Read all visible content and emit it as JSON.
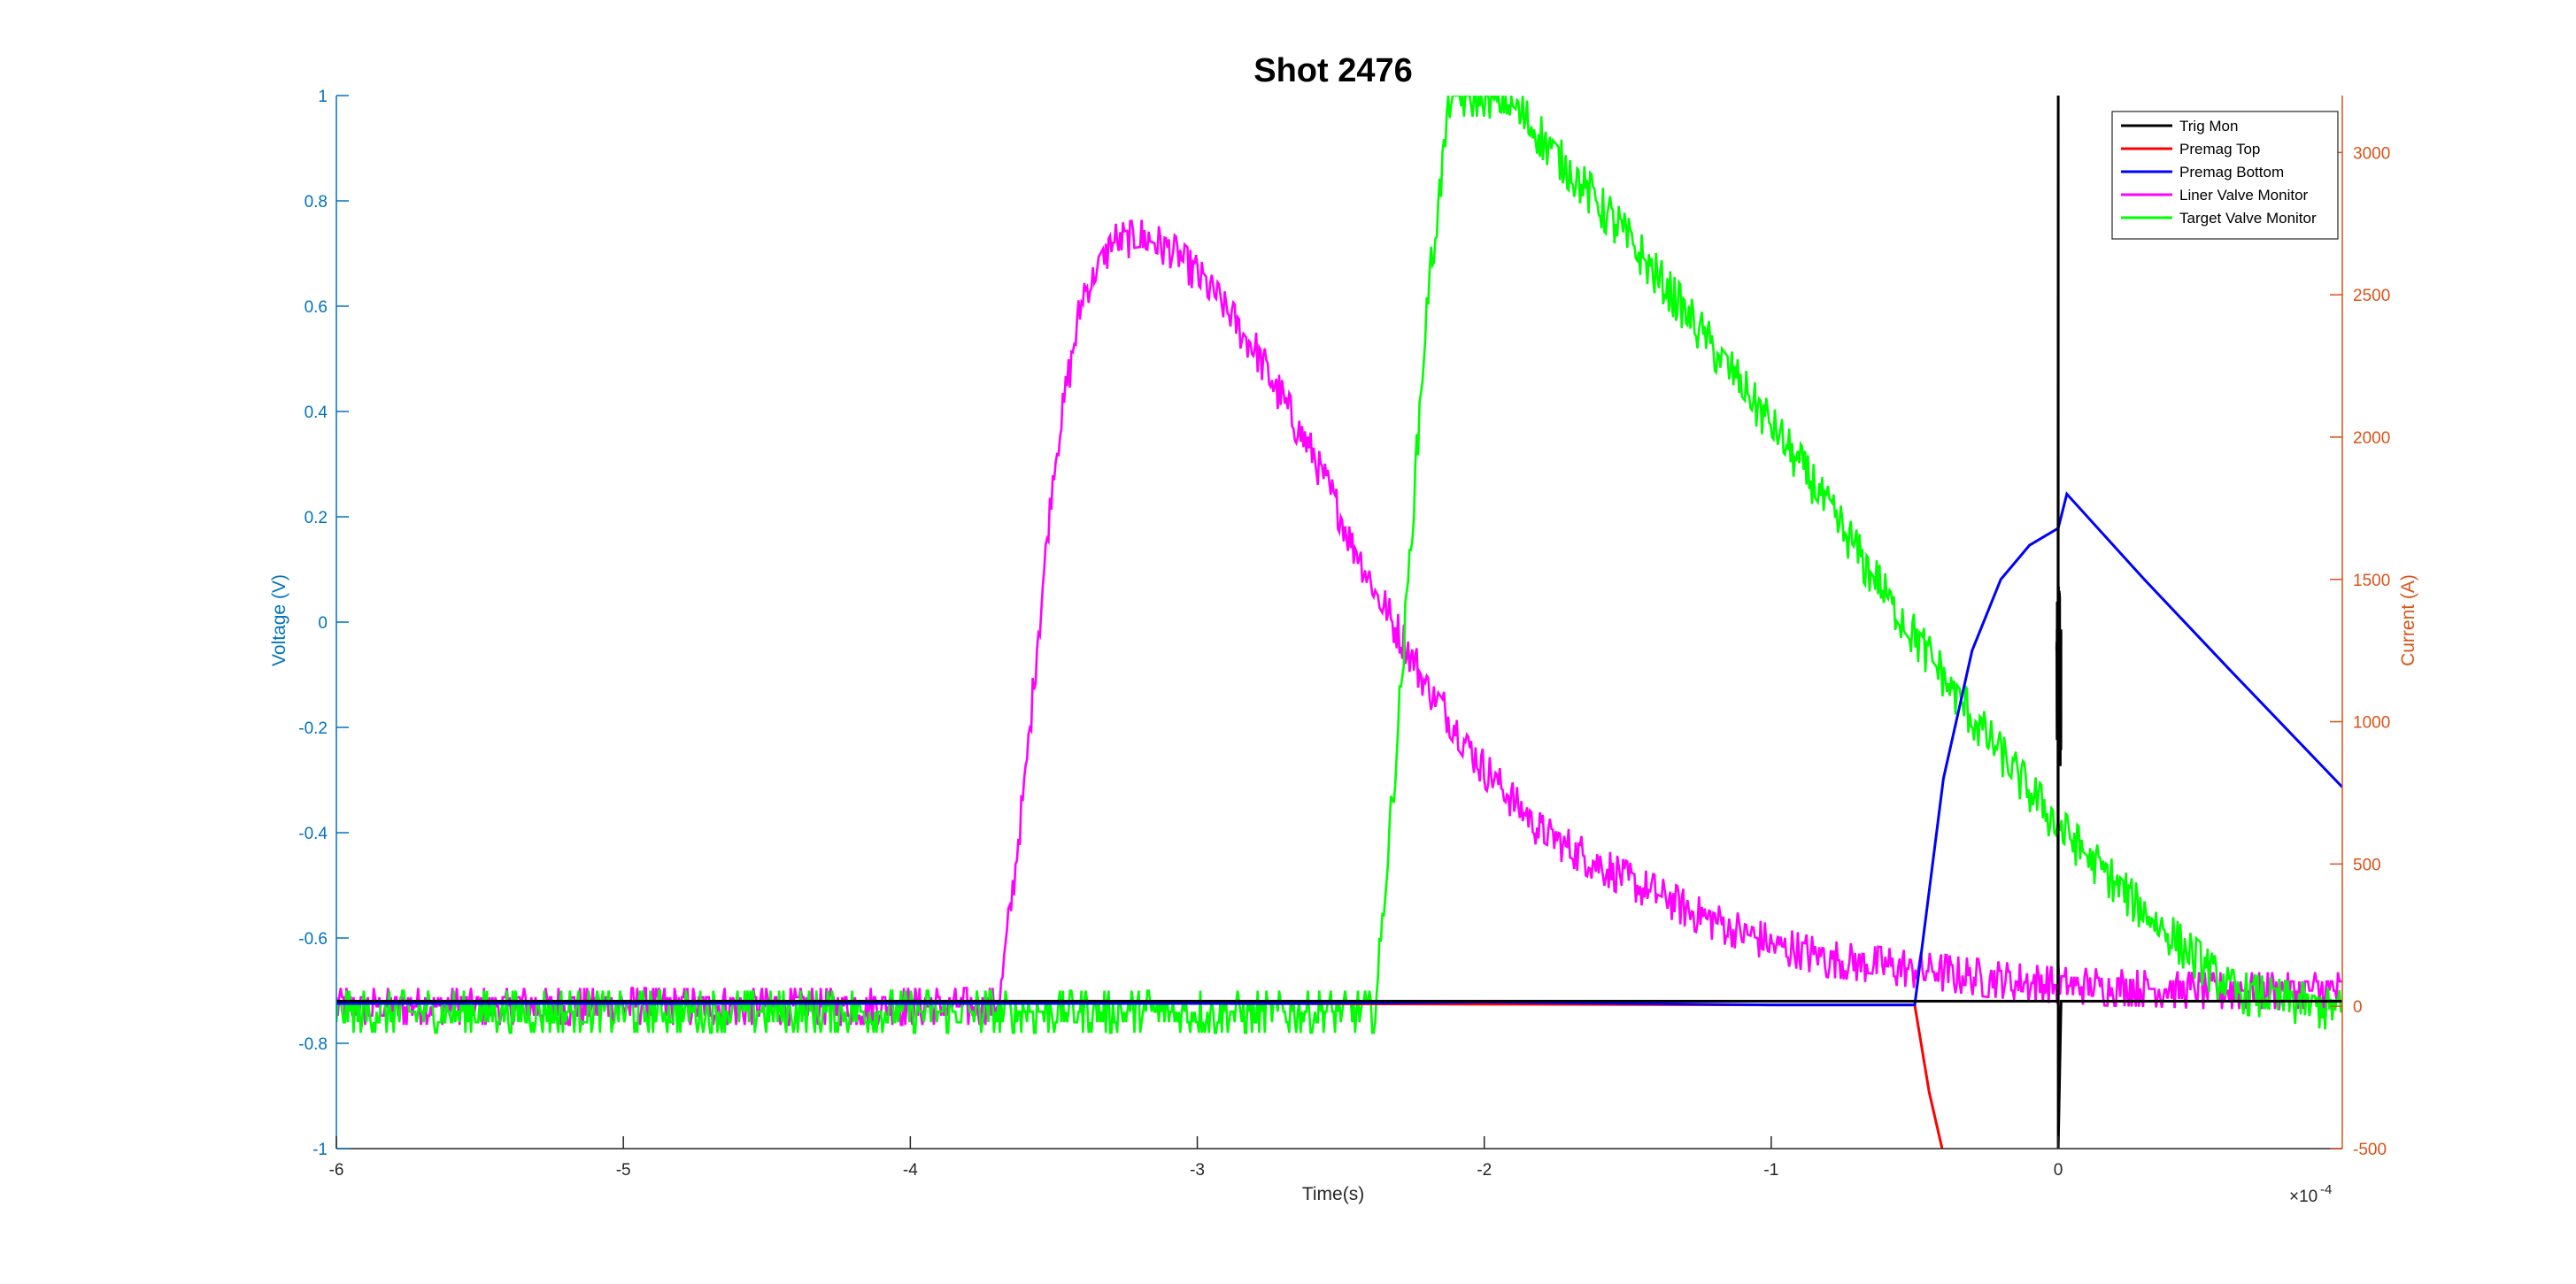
{
  "chart_data": {
    "type": "line",
    "title": "Shot 2476",
    "xlabel": "Time(s)",
    "ylabel_left": "Voltage (V)",
    "ylabel_right": "Current (A)",
    "x_exponent_label": "×10",
    "x_exponent_power": "-4",
    "xlim": [
      -6,
      0.99
    ],
    "ylim_left": [
      -1,
      1
    ],
    "ylim_right": [
      -500,
      3200
    ],
    "x_ticks": [
      -6,
      -5,
      -4,
      -3,
      -2,
      -1,
      0
    ],
    "x_tick_labels": [
      "-6",
      "-5",
      "-4",
      "-3",
      "-2",
      "-1",
      "0"
    ],
    "y_left_ticks": [
      -1,
      -0.8,
      -0.6,
      -0.4,
      -0.2,
      0,
      0.2,
      0.4,
      0.6,
      0.8,
      1
    ],
    "y_left_tick_labels": [
      "-1",
      "-0.8",
      "-0.6",
      "-0.4",
      "-0.2",
      "0",
      "0.2",
      "0.4",
      "0.6",
      "0.8",
      "1"
    ],
    "y_right_ticks": [
      -500,
      0,
      500,
      1000,
      1500,
      2000,
      2500,
      3000
    ],
    "y_right_tick_labels": [
      "-500",
      "0",
      "500",
      "1000",
      "1500",
      "2000",
      "2500",
      "3000"
    ],
    "grid": false,
    "legend_position": "top-right",
    "colors": {
      "left_axis": "#0072BD",
      "right_axis": "#D95319",
      "axis_x": "#262626"
    },
    "series": [
      {
        "name": "Trig Mon",
        "color": "#000000",
        "axis": "left",
        "x": [
          -6,
          -0.001,
          0,
          0,
          0.01,
          0.99
        ],
        "y": [
          -0.72,
          -0.72,
          1,
          -1,
          -0.72,
          -0.72
        ],
        "note_noise": 0.0
      },
      {
        "name": "Premag Top",
        "color": "#FF0000",
        "axis": "right",
        "x": [
          -6,
          -3,
          -1,
          -0.5,
          -0.45,
          -0.4
        ],
        "y": [
          10,
          10,
          5,
          5,
          -300,
          -520
        ]
      },
      {
        "name": "Premag Bottom",
        "color": "#0000FF",
        "axis": "right",
        "x": [
          -6,
          -2.6,
          -2,
          -1,
          -0.5,
          -0.4,
          -0.3,
          -0.2,
          -0.1,
          0,
          0.03,
          0.3,
          0.6,
          0.99
        ],
        "y": [
          10,
          10,
          15,
          5,
          5,
          800,
          1250,
          1500,
          1620,
          1680,
          1800,
          1500,
          1180,
          770
        ]
      },
      {
        "name": "Liner Valve Monitor",
        "color": "#FF00FF",
        "axis": "left",
        "x": [
          -6,
          -3.69,
          -3.6,
          -3.5,
          -3.4,
          -3.3,
          -3.2,
          -3.1,
          -3.0,
          -2.8,
          -2.6,
          -2.4,
          -2.2,
          -2.0,
          -1.8,
          -1.5,
          -1.2,
          -1.0,
          -0.8,
          -0.5,
          -0.2,
          0,
          0.5,
          0.99
        ],
        "y": [
          -0.73,
          -0.73,
          -0.3,
          0.3,
          0.62,
          0.72,
          0.73,
          0.71,
          0.66,
          0.52,
          0.32,
          0.08,
          -0.12,
          -0.28,
          -0.4,
          -0.49,
          -0.57,
          -0.61,
          -0.64,
          -0.66,
          -0.68,
          -0.69,
          -0.7,
          -0.7
        ],
        "noise": 0.035
      },
      {
        "name": "Target Valve Monitor",
        "color": "#00FF00",
        "axis": "left",
        "x": [
          -6,
          -2.38,
          -2.3,
          -2.2,
          -2.12,
          -2.0,
          -1.9,
          -1.8,
          -1.5,
          -1.2,
          -0.9,
          -0.6,
          -0.3,
          0,
          0.3,
          0.6,
          0.99
        ],
        "y": [
          -0.74,
          -0.74,
          -0.2,
          0.6,
          1.0,
          1.0,
          0.98,
          0.92,
          0.73,
          0.52,
          0.3,
          0.05,
          -0.18,
          -0.39,
          -0.55,
          -0.7,
          -0.74
        ],
        "noise": 0.04
      }
    ]
  }
}
